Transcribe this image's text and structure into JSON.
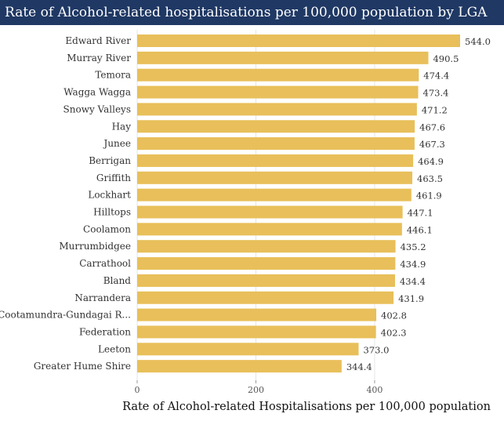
{
  "chart_data": {
    "type": "bar",
    "orientation": "horizontal",
    "title": "Rate of Alcohol-related hospitalisations per 100,000 population by LGA",
    "xlabel": "Rate of Alcohol-related Hospitalisations per 100,000 population",
    "ylabel": "",
    "xlim": [
      0,
      544
    ],
    "xticks": [
      0,
      200,
      400
    ],
    "grid": true,
    "bar_color": "#e8bf5a",
    "title_bg": "#1f3864",
    "categories": [
      "Edward River",
      "Murray River",
      "Temora",
      "Wagga Wagga",
      "Snowy Valleys",
      "Hay",
      "Junee",
      "Berrigan",
      "Griffith",
      "Lockhart",
      "Hilltops",
      "Coolamon",
      "Murrumbidgee",
      "Carrathool",
      "Bland",
      "Narrandera",
      "Cootamundra-Gundagai R...",
      "Federation",
      "Leeton",
      "Greater Hume Shire"
    ],
    "values": [
      544.0,
      490.5,
      474.4,
      473.4,
      471.2,
      467.6,
      467.3,
      464.9,
      463.5,
      461.9,
      447.1,
      446.1,
      435.2,
      434.9,
      434.4,
      431.9,
      402.8,
      402.3,
      373.0,
      344.4
    ],
    "value_labels": [
      "544.0",
      "490.5",
      "474.4",
      "473.4",
      "471.2",
      "467.6",
      "467.3",
      "464.9",
      "463.5",
      "461.9",
      "447.1",
      "446.1",
      "435.2",
      "434.9",
      "434.4",
      "431.9",
      "402.8",
      "402.3",
      "373.0",
      "344.4"
    ]
  }
}
